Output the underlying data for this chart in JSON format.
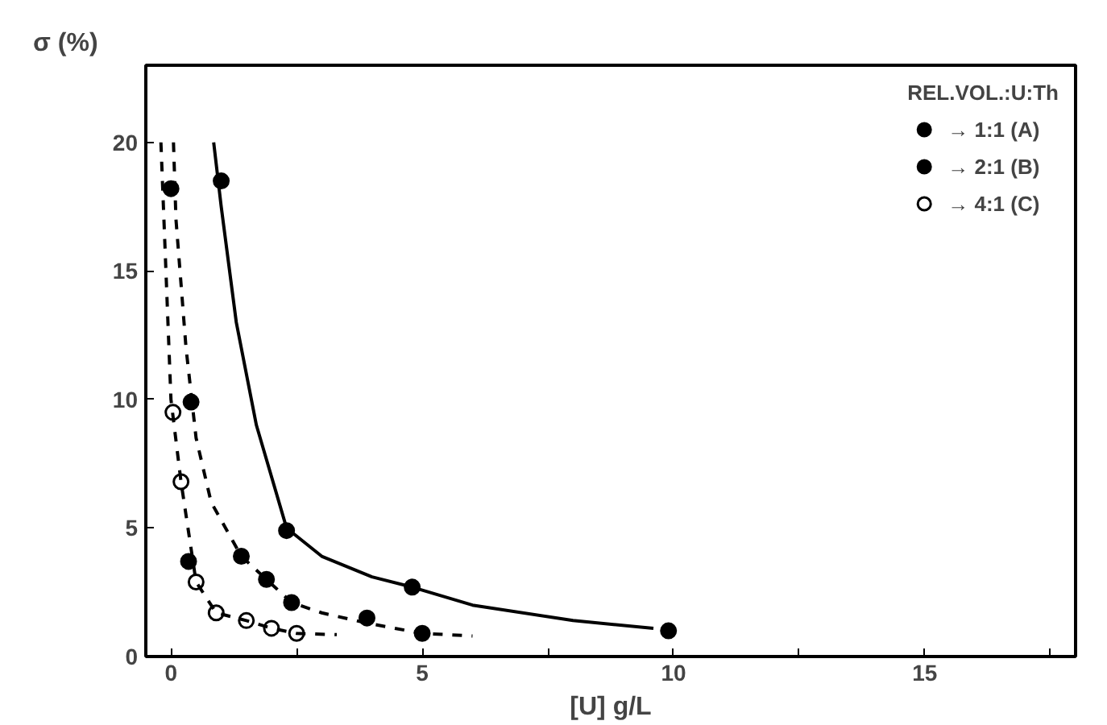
{
  "chart_data": {
    "type": "scatter",
    "ylabel": "σ (%)",
    "xlabel": "[U] g/L",
    "legend_title": "REL.VOL.:U:Th",
    "legend": "top right",
    "grid": false,
    "xlim": [
      -0.5,
      18
    ],
    "ylim": [
      0,
      23
    ],
    "xticks": [
      0,
      {
        "value": 2.5,
        "label": null
      },
      5,
      {
        "value": 7.5,
        "label": null
      },
      10,
      {
        "value": 12.5,
        "label": null
      },
      15,
      {
        "value": 17.5,
        "label": null
      }
    ],
    "yticks": [
      0,
      5,
      10,
      15,
      20
    ],
    "series": [
      {
        "name": "→ 1:1 (A)",
        "color": "#000000",
        "marker": "circle",
        "x": [
          1.0,
          2.3,
          4.8,
          9.9
        ],
        "values": [
          18.5,
          4.9,
          2.7,
          1.0
        ]
      },
      {
        "name": "→ 2:1 (B)",
        "color": "#000000",
        "marker": "circle",
        "x": [
          0,
          0.35,
          0.4,
          1.4,
          1.9,
          2.4,
          3.9,
          5.0
        ],
        "values": [
          18.2,
          3.7,
          9.9,
          3.9,
          3.0,
          2.1,
          1.5,
          0.9
        ]
      },
      {
        "name": "→ 4:1 (C)",
        "color": "#ffffff",
        "marker": "circle",
        "x": [
          0.04,
          0.2,
          0.5,
          0.9,
          1.5,
          2.0,
          2.5
        ],
        "values": [
          9.5,
          6.8,
          2.9,
          1.7,
          1.4,
          1.1,
          0.9
        ]
      },
      {
        "type": "line",
        "line_style": "solid",
        "color": "#000000",
        "x": [
          0.85,
          1.0,
          1.3,
          1.7,
          2.3,
          3,
          4,
          4.8,
          6,
          8,
          9.6
        ],
        "values": [
          20,
          17.5,
          13,
          9,
          5.0,
          3.9,
          3.1,
          2.7,
          2.0,
          1.4,
          1.1
        ]
      },
      {
        "type": "line",
        "line_style": "dashed",
        "color": "#000000",
        "x": [
          0.05,
          0.1,
          0.3,
          0.5,
          0.8,
          1.4,
          1.9,
          2.4,
          3,
          3.9,
          5,
          6
        ],
        "values": [
          20,
          17,
          12,
          8.5,
          6,
          3.9,
          3.0,
          2.1,
          1.7,
          1.3,
          0.9,
          0.8
        ]
      },
      {
        "type": "line",
        "line_style": "dashed",
        "color": "#000000",
        "x": [
          -0.2,
          -0.1,
          0,
          0.2,
          0.5,
          0.9,
          1.5,
          2,
          2.5,
          3.3
        ],
        "values": [
          20,
          15,
          10,
          6.8,
          2.9,
          1.7,
          1.4,
          1.1,
          0.9,
          0.85
        ]
      }
    ]
  }
}
